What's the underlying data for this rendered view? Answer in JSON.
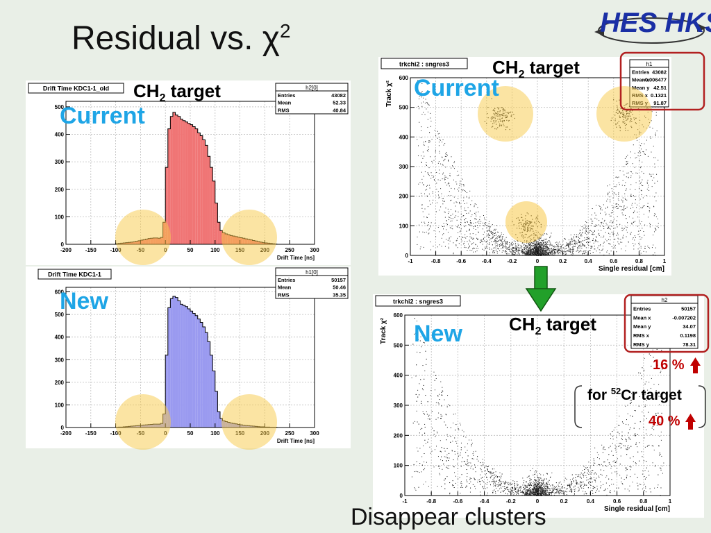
{
  "slide": {
    "title_text": "Residual vs. χ",
    "title_sup": "2",
    "footer": "Disappear clusters",
    "target_label": "CH",
    "target_sub": "2",
    "target_suffix": " target",
    "current_label": "Current",
    "new_label": "New",
    "increase_ch2": "16 %",
    "cr_prefix": "for ",
    "cr_sup": "52",
    "cr_suffix": "Cr target",
    "increase_cr": "40 %",
    "logo": "HES HKS",
    "colors": {
      "accent_blue": "#1ea5e6",
      "alert_red": "#c00000",
      "arrow_green": "#22a02a",
      "highlight": "#f7c948"
    }
  },
  "chart_data": [
    {
      "id": "hist-old",
      "type": "bar",
      "title": "Drift Time KDC1-1_old",
      "xlabel": "Drift Time [ns]",
      "ylabel": "",
      "xlim": [
        -200,
        300
      ],
      "ylim": [
        0,
        520
      ],
      "xticks": [
        "-200",
        "-150",
        "-100",
        "-50",
        "0",
        "50",
        "100",
        "150",
        "200",
        "250",
        "300"
      ],
      "yticks": [
        "0",
        "100",
        "200",
        "300",
        "400",
        "500"
      ],
      "fill": "#f07575",
      "bin_width": 5,
      "x": [
        -100,
        -95,
        -90,
        -85,
        -80,
        -75,
        -70,
        -65,
        -60,
        -55,
        -50,
        -45,
        -40,
        -35,
        -30,
        -25,
        -20,
        -15,
        -10,
        -5,
        0,
        5,
        10,
        15,
        20,
        25,
        30,
        35,
        40,
        45,
        50,
        55,
        60,
        65,
        70,
        75,
        80,
        85,
        90,
        95,
        100,
        105,
        110,
        115,
        120,
        125,
        130,
        135,
        140,
        145,
        150,
        155,
        160,
        165,
        170,
        175,
        180,
        185,
        190,
        195,
        200,
        205,
        210,
        215,
        220
      ],
      "values": [
        2,
        3,
        4,
        5,
        6,
        7,
        8,
        9,
        11,
        13,
        15,
        17,
        19,
        21,
        22,
        23,
        23,
        22,
        25,
        80,
        280,
        420,
        465,
        480,
        470,
        465,
        455,
        450,
        445,
        440,
        435,
        428,
        420,
        405,
        395,
        380,
        360,
        320,
        280,
        230,
        150,
        80,
        50,
        42,
        38,
        35,
        32,
        30,
        28,
        26,
        24,
        22,
        20,
        18,
        16,
        14,
        12,
        10,
        8,
        6,
        5,
        4,
        3,
        2,
        1
      ],
      "stats": {
        "name": "h2[0]",
        "rows": [
          [
            "Entries",
            "43082"
          ],
          [
            "Mean",
            "52.33"
          ],
          [
            "RMS",
            "40.84"
          ]
        ]
      }
    },
    {
      "id": "hist-new",
      "type": "bar",
      "title": "Drift Time KDC1-1",
      "xlabel": "Drift Time [ns]",
      "ylabel": "",
      "xlim": [
        -200,
        300
      ],
      "ylim": [
        0,
        620
      ],
      "xticks": [
        "-200",
        "-150",
        "-100",
        "-50",
        "0",
        "50",
        "100",
        "150",
        "200",
        "250",
        "300"
      ],
      "yticks": [
        "0",
        "100",
        "200",
        "300",
        "400",
        "500",
        "600"
      ],
      "fill": "#9a9af0",
      "bin_width": 5,
      "x": [
        -100,
        -95,
        -90,
        -85,
        -80,
        -75,
        -70,
        -65,
        -60,
        -55,
        -50,
        -45,
        -40,
        -35,
        -30,
        -25,
        -20,
        -15,
        -10,
        -5,
        0,
        5,
        10,
        15,
        20,
        25,
        30,
        35,
        40,
        45,
        50,
        55,
        60,
        65,
        70,
        75,
        80,
        85,
        90,
        95,
        100,
        105,
        110,
        115,
        120,
        125,
        130,
        135,
        140,
        145,
        150,
        155,
        160,
        165,
        170,
        175,
        180,
        185,
        190,
        195,
        200,
        205,
        210,
        215,
        220
      ],
      "values": [
        1,
        2,
        2,
        3,
        4,
        5,
        6,
        7,
        8,
        9,
        10,
        11,
        12,
        13,
        14,
        15,
        15,
        15,
        18,
        60,
        320,
        530,
        570,
        580,
        575,
        560,
        545,
        540,
        535,
        525,
        515,
        505,
        495,
        480,
        465,
        445,
        420,
        380,
        320,
        250,
        160,
        70,
        40,
        30,
        26,
        23,
        20,
        18,
        16,
        14,
        12,
        10,
        9,
        8,
        7,
        6,
        5,
        4,
        3,
        3,
        2,
        2,
        1,
        1,
        1
      ],
      "stats": {
        "name": "h1[0]",
        "rows": [
          [
            "Entries",
            "50157"
          ],
          [
            "Mean",
            "50.46"
          ],
          [
            "RMS",
            "35.35"
          ]
        ]
      }
    },
    {
      "id": "scatter-current",
      "type": "scatter",
      "title": "trkchi2 : sngres3",
      "xlabel": "Single residual [cm]",
      "ylabel": "Track χ²",
      "xlim": [
        -1,
        1
      ],
      "ylim": [
        0,
        600
      ],
      "xticks": [
        "-1",
        "-0.8",
        "-0.6",
        "-0.4",
        "-0.2",
        "0",
        "0.2",
        "0.4",
        "0.6",
        "0.8",
        "1"
      ],
      "yticks": [
        "0",
        "100",
        "200",
        "300",
        "400",
        "500",
        "600"
      ],
      "clusters": [
        [
          -0.3,
          470
        ],
        [
          0.67,
          470
        ],
        [
          -0.08,
          100
        ]
      ],
      "stats": {
        "name": "h1",
        "rows": [
          [
            "Entries",
            "43082"
          ],
          [
            "Mean x",
            "-0.006477"
          ],
          [
            "Mean y",
            "42.51"
          ],
          [
            "RMS x",
            "0.1321"
          ],
          [
            "RMS y",
            "91.87"
          ]
        ]
      }
    },
    {
      "id": "scatter-new",
      "type": "scatter",
      "title": "trkchi2 : sngres3",
      "xlabel": "Single residual [cm]",
      "ylabel": "Track χ²",
      "xlim": [
        -1,
        1
      ],
      "ylim": [
        0,
        600
      ],
      "xticks": [
        "-1",
        "-0.8",
        "-0.6",
        "-0.4",
        "-0.2",
        "0",
        "0.2",
        "0.4",
        "0.6",
        "0.8",
        "1"
      ],
      "yticks": [
        "0",
        "100",
        "200",
        "300",
        "400",
        "500",
        "600"
      ],
      "clusters": [],
      "stats": {
        "name": "h2",
        "rows": [
          [
            "Entries",
            "50157"
          ],
          [
            "Mean x",
            "-0.007202"
          ],
          [
            "Mean y",
            "34.07"
          ],
          [
            "RMS x",
            "0.1198"
          ],
          [
            "RMS y",
            "78.31"
          ]
        ]
      }
    }
  ]
}
